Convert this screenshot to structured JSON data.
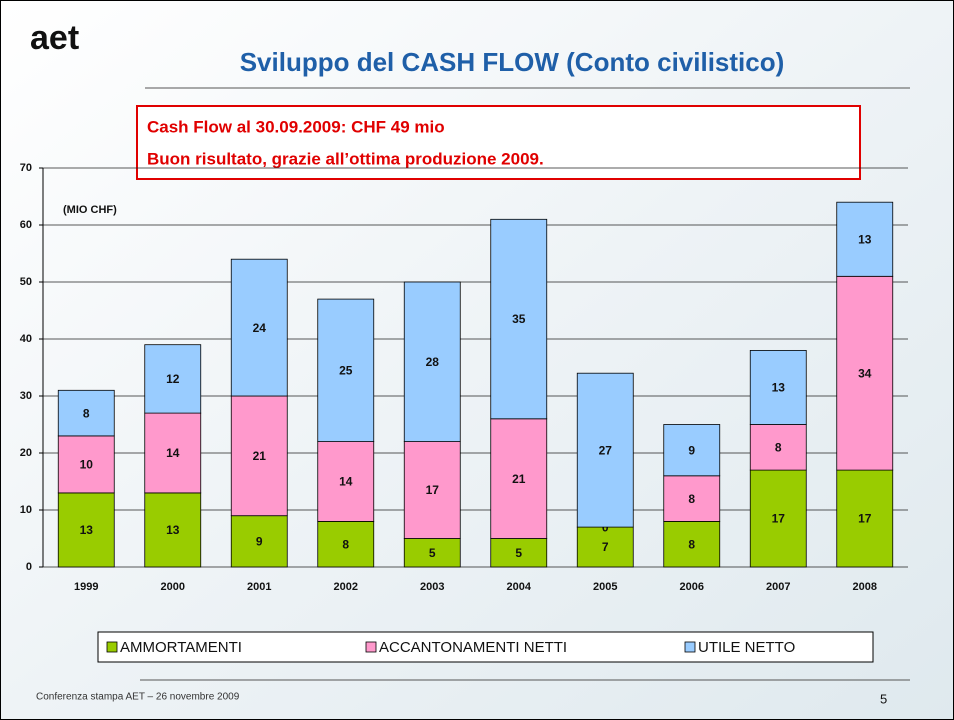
{
  "logo": "aet",
  "title": "Sviluppo del CASH FLOW (Conto civilistico)",
  "callout": [
    "Cash Flow al 30.09.2009: CHF 49 mio",
    "Buon risultato, grazie all’ottima produzione 2009."
  ],
  "chart_data": {
    "type": "bar",
    "stacked": true,
    "y_label": "(MIO CHF)",
    "categories": [
      "1999",
      "2000",
      "2001",
      "2002",
      "2003",
      "2004",
      "2005",
      "2006",
      "2007",
      "2008"
    ],
    "series": [
      {
        "name": "AMMORTAMENTI",
        "color": "#99cc00",
        "values": [
          13,
          13,
          9,
          8,
          5,
          5,
          7,
          8,
          17,
          17
        ]
      },
      {
        "name": "ACCANTONAMENTI NETTI",
        "color": "#ff99cc",
        "values": [
          10,
          14,
          21,
          14,
          17,
          21,
          0,
          8,
          8,
          34
        ]
      },
      {
        "name": "UTILE NETTO",
        "color": "#99ccff",
        "values": [
          8,
          12,
          24,
          25,
          28,
          35,
          27,
          9,
          13,
          13
        ]
      }
    ],
    "ylim": [
      0,
      70
    ],
    "yticks": [
      0,
      10,
      20,
      30,
      40,
      50,
      60,
      70
    ],
    "grid": true
  },
  "footer": "Conferenza stampa AET – 26 novembre 2009",
  "page_number": "5"
}
